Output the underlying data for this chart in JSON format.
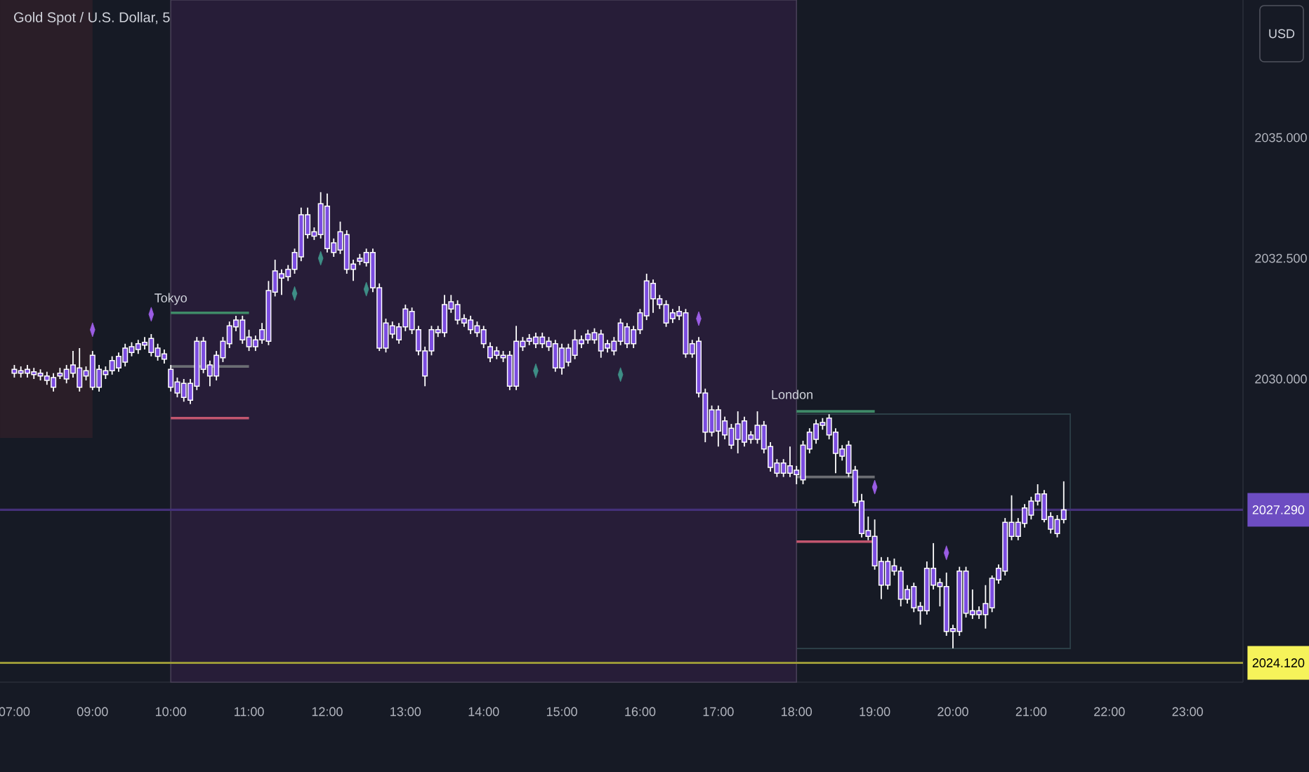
{
  "chart_data": {
    "type": "candlestick",
    "title": "Gold Spot / U.S. Dollar, 5",
    "color": "#7b4ce0",
    "categories": [
      "07:00",
      null,
      null,
      null,
      null,
      null,
      null,
      null,
      null,
      null,
      null,
      null,
      "09:00",
      null,
      null,
      null,
      null,
      null,
      null,
      null,
      null,
      null,
      null,
      null,
      "10:00",
      null,
      null,
      null,
      null,
      null,
      null,
      null,
      null,
      null,
      null,
      null,
      "11:00",
      null,
      null,
      null,
      null,
      null,
      null,
      null,
      null,
      null,
      null,
      null,
      "12:00",
      null,
      null,
      null,
      null,
      null,
      null,
      null,
      null,
      null,
      null,
      null,
      "13:00",
      null,
      null,
      null,
      null,
      null,
      null,
      null,
      null,
      null,
      null,
      null,
      "14:00",
      null,
      null,
      null,
      null,
      null,
      null,
      null,
      null,
      null,
      null,
      null,
      "15:00",
      null,
      null,
      null,
      null,
      null,
      null,
      null,
      null,
      null,
      null,
      null,
      "16:00",
      null,
      null,
      null,
      null,
      null,
      null,
      null,
      null,
      null,
      null,
      null,
      "17:00",
      null,
      null,
      null,
      null,
      null,
      null,
      null,
      null,
      null,
      null,
      null,
      "18:00",
      null,
      null,
      null,
      null,
      null,
      null,
      null,
      null,
      null,
      null,
      null,
      "19:00",
      null,
      null,
      null,
      null,
      null,
      null,
      null,
      null,
      null,
      null,
      null,
      "20:00",
      null,
      null,
      null,
      null,
      null,
      null,
      null,
      null,
      null,
      null,
      null,
      "21:00",
      null,
      null,
      null,
      null,
      null,
      null,
      null,
      null,
      null,
      null,
      null,
      "22:00",
      null,
      null,
      null,
      null,
      null,
      null,
      null,
      null,
      null,
      null,
      null,
      "23:00"
    ],
    "ohlc": [
      [
        2030.12,
        2030.29,
        2030.03,
        2030.2
      ],
      [
        2030.12,
        2030.26,
        2030.03,
        2030.17
      ],
      [
        2030.12,
        2030.29,
        2030.03,
        2030.2
      ],
      [
        2030.09,
        2030.23,
        2030.0,
        2030.15
      ],
      [
        2030.06,
        2030.2,
        2029.97,
        2030.12
      ],
      [
        2029.97,
        2030.15,
        2029.88,
        2030.06
      ],
      [
        2029.83,
        2030.12,
        2029.74,
        2030.03
      ],
      [
        2030.06,
        2030.23,
        2030.0,
        2030.12
      ],
      [
        2030.0,
        2030.29,
        2029.91,
        2030.2
      ],
      [
        2030.12,
        2030.58,
        2030.03,
        2030.29
      ],
      [
        2029.83,
        2030.64,
        2029.74,
        2030.23
      ],
      [
        2030.06,
        2030.26,
        2029.97,
        2030.17
      ],
      [
        2029.83,
        2030.58,
        2029.77,
        2030.49
      ],
      [
        2029.83,
        2030.29,
        2029.74,
        2030.2
      ],
      [
        2030.09,
        2030.26,
        2030.0,
        2030.17
      ],
      [
        2030.17,
        2030.47,
        2030.09,
        2030.38
      ],
      [
        2030.23,
        2030.55,
        2030.15,
        2030.47
      ],
      [
        2030.35,
        2030.73,
        2030.26,
        2030.64
      ],
      [
        2030.55,
        2030.76,
        2030.47,
        2030.67
      ],
      [
        2030.61,
        2030.81,
        2030.52,
        2030.73
      ],
      [
        2030.7,
        2030.87,
        2030.61,
        2030.76
      ],
      [
        2030.55,
        2030.93,
        2030.47,
        2030.84
      ],
      [
        2030.47,
        2030.73,
        2030.38,
        2030.64
      ],
      [
        2030.41,
        2030.61,
        2030.32,
        2030.52
      ],
      [
        2029.83,
        2030.29,
        2029.74,
        2030.2
      ],
      [
        2029.71,
        2030.03,
        2029.62,
        2029.94
      ],
      [
        2029.62,
        2030.0,
        2029.53,
        2029.91
      ],
      [
        2029.56,
        2030.0,
        2029.48,
        2029.91
      ],
      [
        2029.85,
        2030.87,
        2029.77,
        2030.78
      ],
      [
        2030.2,
        2030.87,
        2030.12,
        2030.78
      ],
      [
        2030.06,
        2030.38,
        2029.85,
        2030.29
      ],
      [
        2030.06,
        2030.58,
        2029.97,
        2030.49
      ],
      [
        2030.44,
        2030.87,
        2030.35,
        2030.78
      ],
      [
        2030.73,
        2031.19,
        2030.64,
        2031.1
      ],
      [
        2031.08,
        2031.31,
        2030.99,
        2031.22
      ],
      [
        2030.81,
        2031.31,
        2030.73,
        2031.22
      ],
      [
        2030.67,
        2031.02,
        2030.58,
        2030.87
      ],
      [
        2030.67,
        2030.9,
        2030.58,
        2030.81
      ],
      [
        2030.81,
        2031.16,
        2030.73,
        2031.02
      ],
      [
        2030.78,
        2032.03,
        2030.7,
        2031.83
      ],
      [
        2031.8,
        2032.47,
        2031.71,
        2032.24
      ],
      [
        2032.09,
        2032.27,
        2031.74,
        2032.18
      ],
      [
        2032.12,
        2032.36,
        2032.03,
        2032.27
      ],
      [
        2032.27,
        2032.7,
        2032.18,
        2032.62
      ],
      [
        2032.53,
        2033.55,
        2032.44,
        2033.4
      ],
      [
        2032.99,
        2033.55,
        2032.91,
        2033.4
      ],
      [
        2032.96,
        2033.14,
        2032.88,
        2033.05
      ],
      [
        2032.99,
        2033.87,
        2032.91,
        2033.63
      ],
      [
        2032.7,
        2033.84,
        2032.62,
        2033.58
      ],
      [
        2032.62,
        2032.91,
        2032.53,
        2032.82
      ],
      [
        2032.67,
        2033.26,
        2032.59,
        2033.05
      ],
      [
        2032.27,
        2033.08,
        2032.18,
        2032.99
      ],
      [
        2032.27,
        2032.47,
        2032.03,
        2032.38
      ],
      [
        2032.44,
        2032.59,
        2032.36,
        2032.5
      ],
      [
        2032.41,
        2032.7,
        2032.33,
        2032.62
      ],
      [
        2031.89,
        2032.7,
        2031.8,
        2032.62
      ],
      [
        2030.64,
        2031.98,
        2030.58,
        2031.89
      ],
      [
        2030.64,
        2031.25,
        2030.55,
        2031.16
      ],
      [
        2030.93,
        2031.19,
        2030.84,
        2031.1
      ],
      [
        2030.81,
        2031.16,
        2030.73,
        2031.08
      ],
      [
        2031.08,
        2031.54,
        2030.99,
        2031.45
      ],
      [
        2031.02,
        2031.48,
        2030.93,
        2031.4
      ],
      [
        2030.58,
        2031.1,
        2030.49,
        2031.02
      ],
      [
        2030.06,
        2030.67,
        2029.85,
        2030.58
      ],
      [
        2030.58,
        2031.1,
        2030.49,
        2031.02
      ],
      [
        2030.96,
        2031.1,
        2030.87,
        2031.02
      ],
      [
        2030.96,
        2031.74,
        2030.87,
        2031.54
      ],
      [
        2031.45,
        2031.74,
        2031.37,
        2031.6
      ],
      [
        2031.22,
        2031.63,
        2031.13,
        2031.54
      ],
      [
        2031.16,
        2031.34,
        2031.08,
        2031.25
      ],
      [
        2031.02,
        2031.31,
        2030.93,
        2031.22
      ],
      [
        2030.96,
        2031.19,
        2030.87,
        2031.1
      ],
      [
        2030.73,
        2031.1,
        2030.64,
        2031.02
      ],
      [
        2030.44,
        2030.76,
        2030.35,
        2030.67
      ],
      [
        2030.49,
        2030.67,
        2030.41,
        2030.58
      ],
      [
        2030.44,
        2030.58,
        2030.35,
        2030.49
      ],
      [
        2029.85,
        2030.58,
        2029.77,
        2030.49
      ],
      [
        2029.85,
        2031.1,
        2029.77,
        2030.78
      ],
      [
        2030.67,
        2030.87,
        2030.58,
        2030.78
      ],
      [
        2030.78,
        2030.93,
        2030.7,
        2030.84
      ],
      [
        2030.73,
        2030.96,
        2030.64,
        2030.87
      ],
      [
        2030.73,
        2030.96,
        2030.64,
        2030.87
      ],
      [
        2030.67,
        2030.87,
        2030.58,
        2030.78
      ],
      [
        2030.23,
        2030.81,
        2030.15,
        2030.73
      ],
      [
        2030.23,
        2030.73,
        2030.09,
        2030.64
      ],
      [
        2030.35,
        2030.73,
        2030.26,
        2030.64
      ],
      [
        2030.49,
        2031.02,
        2030.41,
        2030.81
      ],
      [
        2030.73,
        2030.9,
        2030.64,
        2030.81
      ],
      [
        2030.81,
        2031.02,
        2030.73,
        2030.93
      ],
      [
        2030.81,
        2031.05,
        2030.73,
        2030.96
      ],
      [
        2030.58,
        2031.02,
        2030.44,
        2030.93
      ],
      [
        2030.64,
        2030.81,
        2030.55,
        2030.73
      ],
      [
        2030.58,
        2030.87,
        2030.49,
        2030.78
      ],
      [
        2030.78,
        2031.25,
        2030.7,
        2031.16
      ],
      [
        2030.73,
        2031.16,
        2030.64,
        2031.08
      ],
      [
        2030.73,
        2031.1,
        2030.64,
        2031.02
      ],
      [
        2031.02,
        2031.45,
        2030.93,
        2031.37
      ],
      [
        2031.31,
        2032.18,
        2031.22,
        2032.03
      ],
      [
        2031.66,
        2032.06,
        2031.37,
        2031.98
      ],
      [
        2031.54,
        2031.74,
        2031.45,
        2031.66
      ],
      [
        2031.16,
        2031.63,
        2031.08,
        2031.54
      ],
      [
        2031.25,
        2031.45,
        2031.16,
        2031.37
      ],
      [
        2031.31,
        2031.51,
        2031.22,
        2031.4
      ],
      [
        2030.52,
        2031.45,
        2030.44,
        2031.37
      ],
      [
        2030.52,
        2030.81,
        2030.44,
        2030.73
      ],
      [
        2029.71,
        2030.87,
        2029.62,
        2030.78
      ],
      [
        2028.9,
        2029.8,
        2028.69,
        2029.71
      ],
      [
        2028.9,
        2029.45,
        2028.81,
        2029.36
      ],
      [
        2028.92,
        2029.45,
        2028.6,
        2029.36
      ],
      [
        2028.84,
        2029.22,
        2028.75,
        2029.13
      ],
      [
        2028.63,
        2029.07,
        2028.55,
        2028.98
      ],
      [
        2028.75,
        2029.33,
        2028.46,
        2029.07
      ],
      [
        2028.69,
        2029.22,
        2028.6,
        2029.13
      ],
      [
        2028.75,
        2028.92,
        2028.66,
        2028.84
      ],
      [
        2028.75,
        2029.33,
        2028.66,
        2029.04
      ],
      [
        2028.55,
        2029.13,
        2028.46,
        2029.04
      ],
      [
        2028.17,
        2028.69,
        2028.08,
        2028.6
      ],
      [
        2028.05,
        2028.34,
        2027.97,
        2028.26
      ],
      [
        2028.05,
        2028.34,
        2027.97,
        2028.26
      ],
      [
        2028.05,
        2028.6,
        2027.97,
        2028.2
      ],
      [
        2028.02,
        2028.2,
        2027.82,
        2028.11
      ],
      [
        2027.91,
        2028.72,
        2027.82,
        2028.63
      ],
      [
        2028.55,
        2028.98,
        2028.46,
        2028.9
      ],
      [
        2028.75,
        2029.16,
        2028.66,
        2029.07
      ],
      [
        2029.04,
        2029.19,
        2028.95,
        2029.1
      ],
      [
        2028.84,
        2029.27,
        2028.75,
        2029.19
      ],
      [
        2028.46,
        2028.98,
        2028.05,
        2028.9
      ],
      [
        2028.4,
        2028.63,
        2028.31,
        2028.55
      ],
      [
        2028.05,
        2028.72,
        2027.97,
        2028.63
      ],
      [
        2027.44,
        2028.2,
        2027.36,
        2028.11
      ],
      [
        2026.8,
        2027.62,
        2026.72,
        2027.47
      ],
      [
        2026.74,
        2027.15,
        2026.66,
        2026.86
      ],
      [
        2026.13,
        2027.09,
        2026.05,
        2026.74
      ],
      [
        2025.73,
        2026.31,
        2025.44,
        2026.22
      ],
      [
        2025.73,
        2026.31,
        2025.64,
        2026.22
      ],
      [
        2026.02,
        2026.28,
        2025.93,
        2026.13
      ],
      [
        2025.44,
        2026.11,
        2025.29,
        2026.02
      ],
      [
        2025.44,
        2025.73,
        2025.35,
        2025.64
      ],
      [
        2025.26,
        2025.78,
        2025.17,
        2025.7
      ],
      [
        2025.2,
        2025.38,
        2024.91,
        2025.29
      ],
      [
        2025.2,
        2026.22,
        2025.12,
        2026.08
      ],
      [
        2025.73,
        2026.6,
        2025.64,
        2026.08
      ],
      [
        2025.7,
        2025.87,
        2025.29,
        2025.78
      ],
      [
        2024.77,
        2025.99,
        2024.68,
        2025.7
      ],
      [
        2024.77,
        2024.91,
        2024.42,
        2024.83
      ],
      [
        2024.77,
        2026.11,
        2024.68,
        2026.02
      ],
      [
        2025.15,
        2026.11,
        2025.06,
        2026.02
      ],
      [
        2025.12,
        2025.64,
        2025.03,
        2025.2
      ],
      [
        2025.12,
        2025.29,
        2025.03,
        2025.2
      ],
      [
        2025.12,
        2025.73,
        2024.83,
        2025.35
      ],
      [
        2025.26,
        2025.93,
        2025.17,
        2025.87
      ],
      [
        2025.84,
        2026.16,
        2025.76,
        2026.08
      ],
      [
        2026.02,
        2027.12,
        2025.93,
        2027.03
      ],
      [
        2026.74,
        2027.59,
        2026.66,
        2027.03
      ],
      [
        2026.74,
        2027.12,
        2026.66,
        2027.03
      ],
      [
        2027.01,
        2027.41,
        2026.92,
        2027.33
      ],
      [
        2027.18,
        2027.56,
        2027.09,
        2027.47
      ],
      [
        2027.47,
        2027.82,
        2027.38,
        2027.62
      ],
      [
        2027.09,
        2027.7,
        2027.03,
        2027.62
      ],
      [
        2026.89,
        2027.24,
        2026.8,
        2027.15
      ],
      [
        2026.8,
        2027.18,
        2026.72,
        2027.09
      ],
      [
        2027.09,
        2027.88,
        2027.01,
        2027.29
      ],
      null,
      null,
      null,
      null,
      null,
      null,
      null,
      null,
      null,
      null,
      null,
      null,
      null,
      null,
      null,
      null,
      null,
      null,
      null
    ],
    "series": [
      {
        "type": "scatter",
        "color": "#9b5de5",
        "marker": "diamond",
        "values": [
          null,
          null,
          null,
          null,
          null,
          null,
          null,
          null,
          null,
          null,
          null,
          null,
          2031.02,
          null,
          null,
          null,
          null,
          null,
          null,
          null,
          null,
          2031.34,
          null,
          null,
          null,
          null,
          null,
          null,
          null,
          null,
          null,
          null,
          null,
          null,
          null,
          null,
          null,
          null,
          null,
          null,
          null,
          null,
          null,
          null,
          null,
          null,
          null,
          null,
          null,
          null,
          null,
          null,
          null,
          null,
          null,
          null,
          null,
          null,
          null,
          null,
          null,
          null,
          null,
          null,
          null,
          null,
          null,
          null,
          null,
          null,
          null,
          null,
          null,
          null,
          null,
          null,
          null,
          null,
          null,
          null,
          null,
          null,
          null,
          null,
          null,
          null,
          null,
          null,
          null,
          null,
          null,
          null,
          null,
          null,
          null,
          null,
          null,
          null,
          null,
          null,
          null,
          null,
          null,
          null,
          null,
          2031.25,
          null,
          null,
          null,
          null,
          null,
          null,
          null,
          null,
          null,
          null,
          null,
          null,
          null,
          null,
          null,
          null,
          null,
          null,
          null,
          null,
          null,
          null,
          null,
          null,
          null,
          null,
          2027.76,
          null,
          null,
          null,
          null,
          null,
          null,
          null,
          null,
          null,
          null,
          2026.4,
          null,
          null,
          null,
          null,
          null,
          null,
          null,
          null,
          null,
          null,
          null,
          null,
          null,
          null,
          null,
          null,
          null,
          null,
          null,
          null,
          null,
          null,
          null,
          null,
          null,
          null,
          null,
          null,
          null,
          null,
          null,
          null,
          null,
          null,
          null,
          null,
          null
        ]
      },
      {
        "type": "scatter",
        "color": "#3e8e86",
        "marker": "diamond",
        "values": [
          null,
          null,
          null,
          null,
          null,
          null,
          null,
          null,
          null,
          null,
          null,
          null,
          null,
          null,
          null,
          null,
          null,
          null,
          null,
          null,
          null,
          null,
          null,
          null,
          null,
          null,
          null,
          null,
          null,
          null,
          null,
          null,
          null,
          null,
          null,
          null,
          null,
          null,
          null,
          null,
          null,
          null,
          null,
          2031.77,
          null,
          null,
          null,
          2032.5,
          null,
          null,
          null,
          null,
          null,
          null,
          2031.86,
          null,
          null,
          null,
          null,
          null,
          null,
          null,
          null,
          null,
          null,
          null,
          null,
          null,
          null,
          null,
          null,
          null,
          null,
          null,
          null,
          null,
          null,
          null,
          null,
          null,
          2030.17,
          null,
          null,
          null,
          null,
          null,
          null,
          null,
          null,
          null,
          null,
          null,
          null,
          2030.09,
          null,
          null,
          null,
          null,
          null,
          null,
          null,
          null,
          null,
          null,
          null,
          null,
          null,
          null,
          null,
          null,
          null,
          null,
          null,
          null,
          null,
          null,
          null,
          null,
          null,
          null,
          null,
          null,
          null,
          null,
          null,
          null,
          null,
          null,
          null,
          null,
          null,
          null,
          null,
          null,
          null,
          null,
          null,
          null,
          null,
          null,
          null,
          null,
          null,
          null,
          null,
          null,
          null,
          null,
          null,
          null,
          null,
          null,
          null,
          null,
          null,
          null,
          null,
          null,
          null,
          null,
          null,
          null,
          null,
          null,
          null,
          null,
          null,
          null,
          null,
          null,
          null,
          null,
          null,
          null,
          null,
          null,
          null,
          null,
          null,
          null,
          null
        ]
      },
      {
        "type": "line",
        "color": "#3f8a68",
        "x": [
          "10:00",
          "11:00"
        ],
        "values": [
          2031.37,
          2031.37
        ]
      },
      {
        "type": "line",
        "color": "#6b6d73",
        "x": [
          "10:00",
          "11:00"
        ],
        "values": [
          2030.26,
          2030.26
        ]
      },
      {
        "type": "line",
        "color": "#c2566f",
        "x": [
          "10:00",
          "11:00"
        ],
        "values": [
          2029.19,
          2029.19
        ]
      },
      {
        "type": "line",
        "color": "#3f8a68",
        "x": [
          "18:00",
          "19:00"
        ],
        "values": [
          2029.33,
          2029.33
        ]
      },
      {
        "type": "line",
        "color": "#6b6d73",
        "x": [
          "18:00",
          "19:00"
        ],
        "values": [
          2027.97,
          2027.97
        ]
      },
      {
        "type": "line",
        "color": "#c2566f",
        "x": [
          "18:00",
          "19:00"
        ],
        "values": [
          2026.63,
          2026.63
        ]
      }
    ],
    "ylim": [
      2023.72,
      2037.85
    ],
    "yticks": [
      {
        "value": 2030,
        "label": "2030.000"
      },
      {
        "value": 2032.5,
        "label": "2032.500"
      },
      {
        "value": 2035,
        "label": "2035.000"
      }
    ],
    "ref_lines": [
      {
        "axis": "y",
        "value": 2027.29,
        "label": "2027.290",
        "color": "#443079"
      },
      {
        "axis": "y",
        "value": 2024.12,
        "label": "2024.120",
        "color": "#9a9838"
      }
    ],
    "bands": [
      {
        "axis": "x",
        "from": "10:00",
        "to": "18:00",
        "label": "Tokyo",
        "color": "#271d38"
      }
    ],
    "annotations": [
      "USD",
      "London"
    ]
  }
}
